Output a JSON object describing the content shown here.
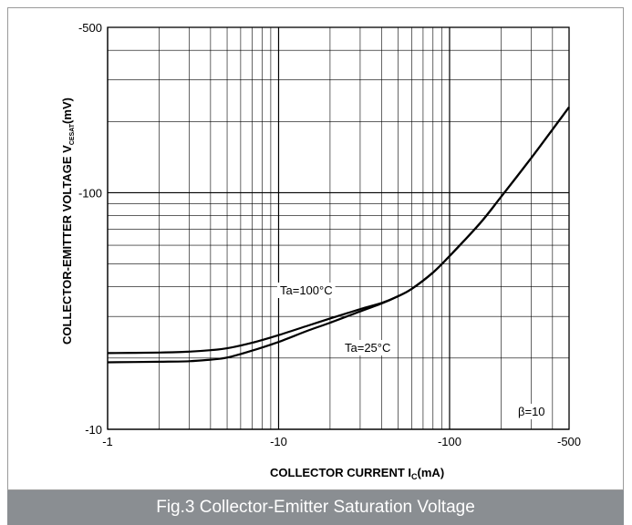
{
  "caption": "Fig.3 Collector-Emitter Saturation Voltage",
  "chart_data": {
    "type": "line",
    "xscale": "log",
    "yscale": "log",
    "xlim": [
      -1,
      -500
    ],
    "ylim": [
      -10,
      -500
    ],
    "x_ticks": [
      "-1",
      "-10",
      "-100",
      "-500"
    ],
    "y_ticks": [
      "-10",
      "-100",
      "-500"
    ],
    "xlabel": {
      "main": "COLLECTOR CURRENT  I",
      "sub": "C",
      "unit": "(mA)"
    },
    "ylabel": {
      "main": "COLLECTOR-EMITTER VOLTAGE  V",
      "sub": "CESAT",
      "unit": "(mV)"
    },
    "grid": true,
    "annotations": [
      "Ta=100°C",
      "Ta=25°C",
      "β=10"
    ],
    "series": [
      {
        "name": "Ta=100°C",
        "x": [
          -1,
          -2,
          -3,
          -4,
          -5,
          -7,
          -10,
          -15,
          -20,
          -30,
          -40,
          -50,
          -60,
          -80,
          -100,
          -150,
          -200,
          -300,
          -400,
          -500
        ],
        "y": [
          -21.0,
          -21.1,
          -21.3,
          -21.6,
          -22.0,
          -23.2,
          -25.0,
          -27.5,
          -29.4,
          -32.2,
          -34.2,
          -36.5,
          -39.2,
          -46.0,
          -54.0,
          -74.0,
          -96.0,
          -140.0,
          -185.0,
          -230.0
        ]
      },
      {
        "name": "Ta=25°C",
        "x": [
          -1,
          -2,
          -3,
          -4,
          -5,
          -7,
          -10,
          -15,
          -20,
          -30,
          -40,
          -50,
          -60,
          -80,
          -100,
          -150,
          -200,
          -300,
          -400,
          -500
        ],
        "y": [
          -19.2,
          -19.3,
          -19.4,
          -19.7,
          -20.1,
          -21.5,
          -23.4,
          -26.2,
          -28.2,
          -31.5,
          -34.0,
          -36.5,
          -39.2,
          -46.0,
          -54.0,
          -74.0,
          -96.0,
          -140.0,
          -185.0,
          -230.0
        ]
      }
    ],
    "colors": {
      "line": "#000000",
      "grid": "#000000",
      "caption_bg": "#8a8e92"
    }
  }
}
